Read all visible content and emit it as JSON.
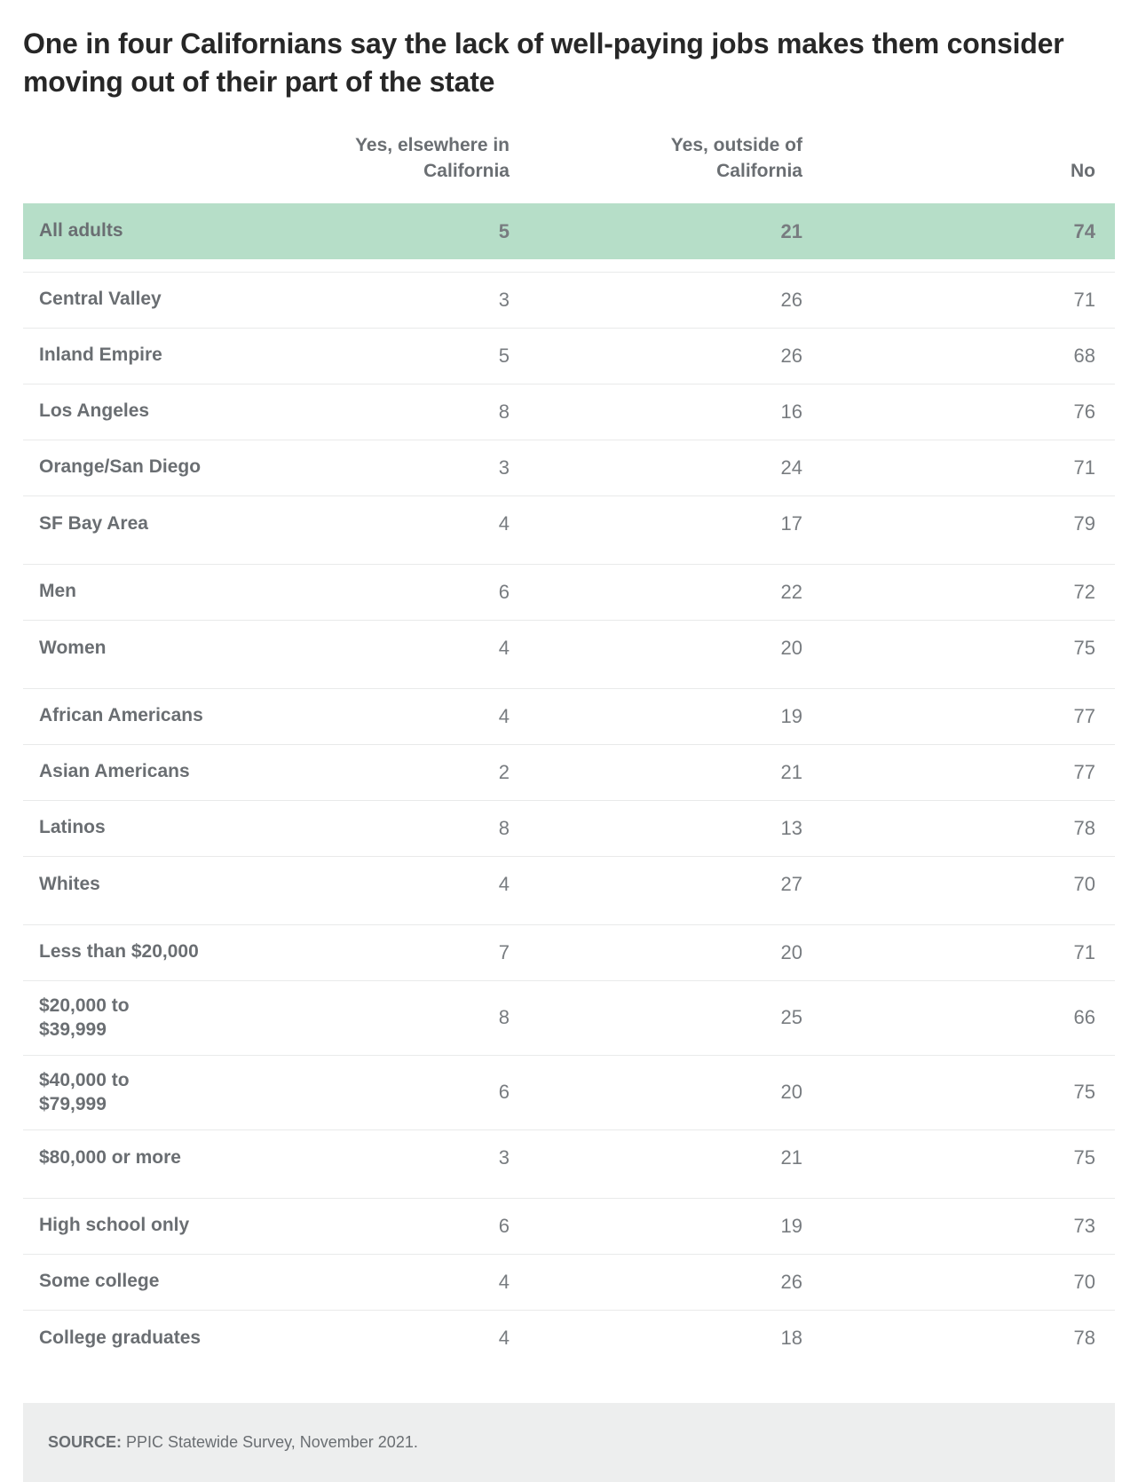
{
  "title": "One in four Californians say the lack of well-paying jobs makes them consider moving out of their part of the state",
  "columns": {
    "c1_line1": "Yes, elsewhere in",
    "c1_line2": "California",
    "c2_line1": "Yes, outside of",
    "c2_line2": "California",
    "c3": "No"
  },
  "groups": [
    {
      "highlight": true,
      "rows": [
        {
          "label": "All adults",
          "v": [
            "5",
            "21",
            "74"
          ]
        }
      ]
    },
    {
      "rows": [
        {
          "label": "Central Valley",
          "v": [
            "3",
            "26",
            "71"
          ]
        },
        {
          "label": "Inland Empire",
          "v": [
            "5",
            "26",
            "68"
          ]
        },
        {
          "label": "Los Angeles",
          "v": [
            "8",
            "16",
            "76"
          ]
        },
        {
          "label": "Orange/San Diego",
          "v": [
            "3",
            "24",
            "71"
          ]
        },
        {
          "label": "SF Bay Area",
          "v": [
            "4",
            "17",
            "79"
          ]
        }
      ]
    },
    {
      "rows": [
        {
          "label": "Men",
          "v": [
            "6",
            "22",
            "72"
          ]
        },
        {
          "label": "Women",
          "v": [
            "4",
            "20",
            "75"
          ]
        }
      ]
    },
    {
      "rows": [
        {
          "label": "African Americans",
          "v": [
            "4",
            "19",
            "77"
          ]
        },
        {
          "label": "Asian Americans",
          "v": [
            "2",
            "21",
            "77"
          ]
        },
        {
          "label": "Latinos",
          "v": [
            "8",
            "13",
            "78"
          ]
        },
        {
          "label": "Whites",
          "v": [
            "4",
            "27",
            "70"
          ]
        }
      ]
    },
    {
      "rows": [
        {
          "label": "Less than $20,000",
          "v": [
            "7",
            "20",
            "71"
          ]
        },
        {
          "label": "$20,000 to $39,999",
          "v": [
            "8",
            "25",
            "66"
          ],
          "wrap": true
        },
        {
          "label": "$40,000 to $79,999",
          "v": [
            "6",
            "20",
            "75"
          ],
          "wrap": true
        },
        {
          "label": "$80,000 or more",
          "v": [
            "3",
            "21",
            "75"
          ]
        }
      ]
    },
    {
      "rows": [
        {
          "label": "High school only",
          "v": [
            "6",
            "19",
            "73"
          ]
        },
        {
          "label": "Some college",
          "v": [
            "4",
            "26",
            "70"
          ]
        },
        {
          "label": "College graduates",
          "v": [
            "4",
            "18",
            "78"
          ]
        }
      ]
    }
  ],
  "source": {
    "label": "SOURCE:",
    "text": " PPIC Statewide Survey, November 2021."
  },
  "style": {
    "highlight_bg": "#b6dec8",
    "border_color": "#e9eaea",
    "text_muted": "#787c80",
    "label_color": "#6a6e72",
    "source_bg": "#edeeee"
  }
}
